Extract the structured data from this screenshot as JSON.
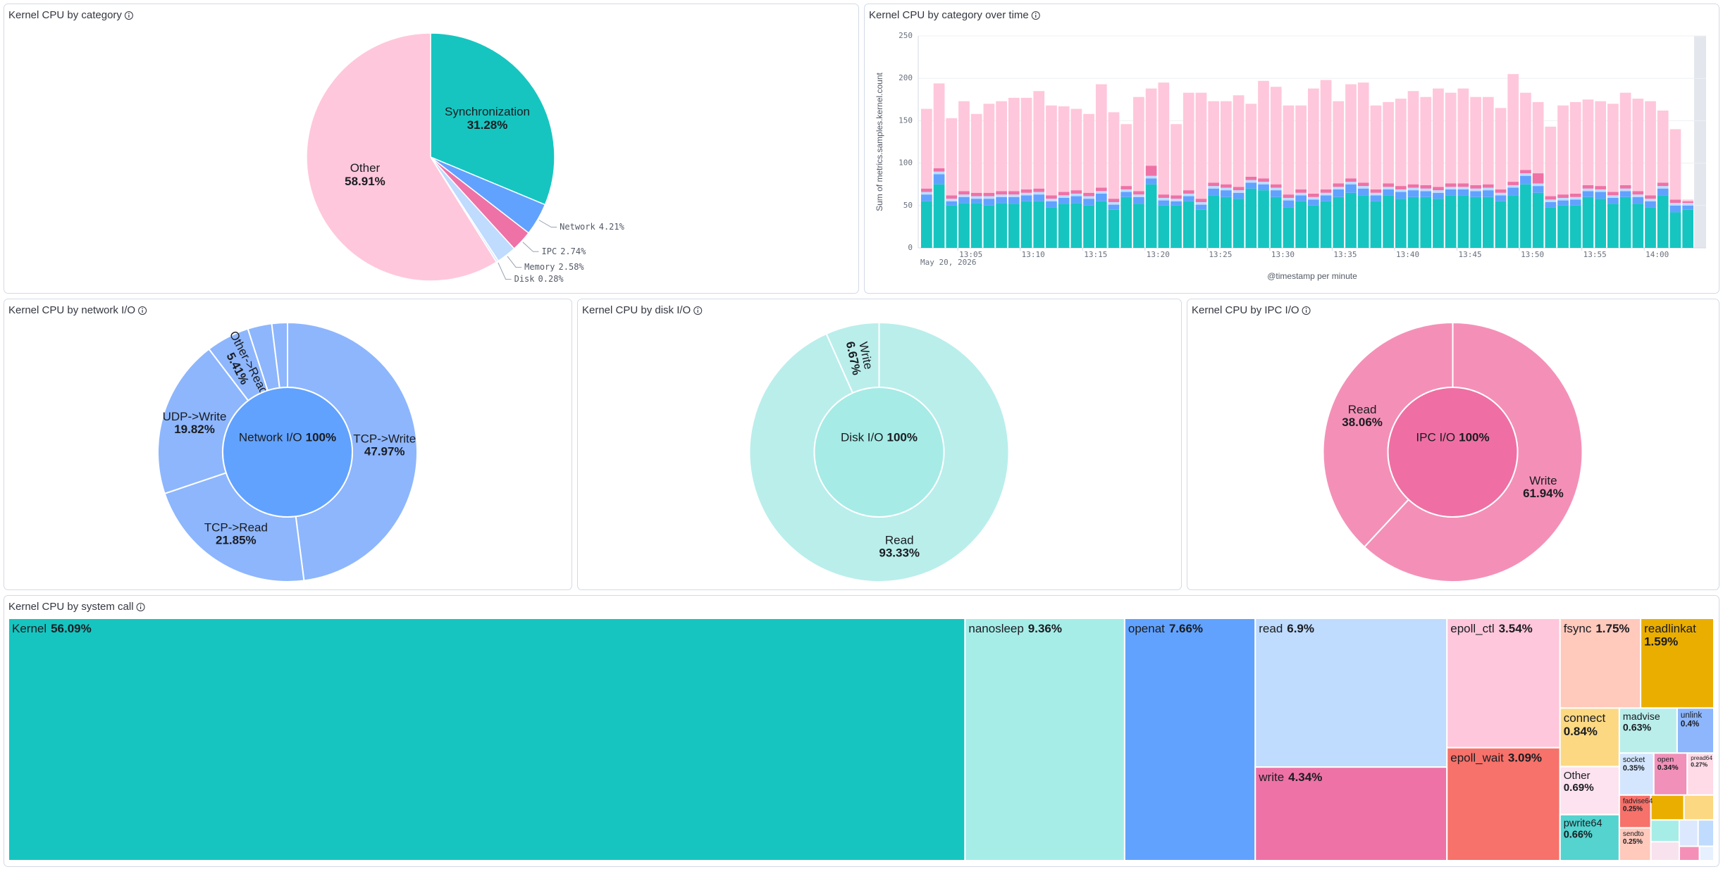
{
  "chart_data": [
    {
      "type": "pie",
      "title": "Kernel CPU by category",
      "categories": [
        "Synchronization",
        "Network",
        "IPC",
        "Memory",
        "Disk",
        "Other"
      ],
      "values": [
        31.28,
        4.21,
        2.74,
        2.58,
        0.28,
        58.91
      ],
      "value_labels": [
        "31.28%",
        "4.21%",
        "2.74%",
        "2.58%",
        "0.28%",
        "58.91%"
      ],
      "colors": [
        "#16c5c0",
        "#61a2ff",
        "#ee72a6",
        "#bfdbfe",
        "#d8e8fd",
        "#ffc7db"
      ]
    },
    {
      "type": "bar",
      "title": "Kernel CPU by category over time",
      "y_label": "Sum of metrics.samples.kernel.count",
      "x_label": "@timestamp per minute",
      "date_label": "May 20, 2026",
      "ylim": [
        0,
        250
      ],
      "yticks": [
        0,
        50,
        100,
        150,
        200,
        250
      ],
      "grid": true,
      "stacked": true,
      "categories": [
        null,
        null,
        null,
        "13:05",
        null,
        null,
        null,
        null,
        "13:10",
        null,
        null,
        null,
        null,
        "13:15",
        null,
        null,
        null,
        null,
        "13:20",
        null,
        null,
        null,
        null,
        "13:25",
        null,
        null,
        null,
        null,
        "13:30",
        null,
        null,
        null,
        null,
        "13:35",
        null,
        null,
        null,
        null,
        "13:40",
        null,
        null,
        null,
        null,
        "13:45",
        null,
        null,
        null,
        null,
        "13:50",
        null,
        null,
        null,
        null,
        "13:55",
        null,
        null,
        null,
        null,
        "14:00",
        null,
        null,
        null
      ],
      "series": [
        {
          "color": "#16c5c0",
          "values": [
            55,
            75,
            50,
            53,
            53,
            50,
            53,
            52,
            55,
            55,
            48,
            52,
            53,
            50,
            55,
            45,
            60,
            52,
            75,
            50,
            50,
            55,
            45,
            62,
            60,
            58,
            70,
            68,
            60,
            48,
            55,
            50,
            55,
            60,
            65,
            62,
            55,
            62,
            58,
            60,
            60,
            58,
            62,
            62,
            60,
            60,
            55,
            62,
            75,
            65,
            48,
            50,
            50,
            60,
            58,
            52,
            60,
            52,
            48,
            62,
            42,
            45
          ]
        },
        {
          "color": "#61a2ff",
          "values": [
            8,
            12,
            5,
            7,
            5,
            8,
            7,
            8,
            7,
            8,
            7,
            7,
            8,
            8,
            9,
            6,
            6,
            8,
            7,
            6,
            5,
            6,
            6,
            8,
            8,
            7,
            7,
            7,
            8,
            8,
            7,
            7,
            7,
            9,
            10,
            8,
            7,
            7,
            8,
            8,
            7,
            7,
            7,
            7,
            7,
            8,
            7,
            9,
            10,
            8,
            6,
            6,
            7,
            7,
            8,
            7,
            7,
            8,
            7,
            8,
            8,
            5
          ]
        },
        {
          "color": "#bfdbfe",
          "values": [
            3,
            3,
            3,
            3,
            3,
            3,
            3,
            3,
            3,
            3,
            3,
            3,
            3,
            3,
            3,
            3,
            3,
            3,
            3,
            3,
            3,
            3,
            3,
            3,
            3,
            3,
            3,
            3,
            3,
            3,
            3,
            3,
            3,
            3,
            3,
            3,
            3,
            3,
            3,
            3,
            3,
            3,
            3,
            3,
            3,
            3,
            3,
            3,
            3,
            3,
            3,
            3,
            3,
            3,
            3,
            3,
            3,
            3,
            3,
            3,
            3,
            3
          ]
        },
        {
          "color": "#ee72a6",
          "values": [
            4,
            4,
            4,
            4,
            4,
            4,
            4,
            4,
            4,
            4,
            4,
            4,
            4,
            4,
            4,
            4,
            4,
            4,
            12,
            4,
            4,
            4,
            4,
            4,
            4,
            4,
            4,
            4,
            4,
            4,
            4,
            4,
            4,
            4,
            4,
            4,
            4,
            4,
            4,
            4,
            4,
            4,
            4,
            4,
            4,
            4,
            4,
            4,
            4,
            12,
            4,
            4,
            4,
            4,
            4,
            4,
            4,
            4,
            4,
            4,
            4,
            2
          ]
        },
        {
          "color": "#ffc7db",
          "values": [
            94,
            100,
            91,
            106,
            93,
            105,
            106,
            110,
            108,
            115,
            106,
            101,
            96,
            93,
            122,
            102,
            73,
            111,
            91,
            132,
            84,
            115,
            125,
            96,
            98,
            108,
            86,
            115,
            115,
            105,
            99,
            124,
            129,
            97,
            111,
            118,
            99,
            96,
            103,
            110,
            104,
            116,
            107,
            112,
            104,
            103,
            96,
            127,
            91,
            84,
            82,
            105,
            108,
            101,
            100,
            104,
            109,
            109,
            111,
            85,
            83,
            2
          ]
        }
      ]
    },
    {
      "type": "sunburst",
      "title": "Kernel CPU by network I/O",
      "inner": {
        "label": "Network I/O",
        "value": 100,
        "value_label": "100%",
        "color": "#61a2ff"
      },
      "categories": [
        "TCP->Write",
        "TCP->Read",
        "UDP->Write",
        "Other->Read",
        null,
        null
      ],
      "values": [
        47.97,
        21.85,
        19.82,
        5.41,
        3.0,
        1.95
      ],
      "value_labels": [
        "47.97%",
        "21.85%",
        "19.82%",
        "5.41%",
        null,
        null
      ],
      "color": "#8db6fd"
    },
    {
      "type": "sunburst",
      "title": "Kernel CPU by disk I/O",
      "inner": {
        "label": "Disk I/O",
        "value": 100,
        "value_label": "100%",
        "color": "#a6ebe6"
      },
      "categories": [
        "Read",
        "Write"
      ],
      "values": [
        93.33,
        6.67
      ],
      "value_labels": [
        "93.33%",
        "6.67%"
      ],
      "color": "#b9eeeb"
    },
    {
      "type": "sunburst",
      "title": "Kernel CPU by IPC I/O",
      "inner": {
        "label": "IPC I/O",
        "value": 100,
        "value_label": "100%",
        "color": "#ef6fa4"
      },
      "categories": [
        "Write",
        "Read"
      ],
      "values": [
        61.94,
        38.06
      ],
      "value_labels": [
        "61.94%",
        "38.06%"
      ],
      "color": "#f490b7"
    },
    {
      "type": "treemap",
      "title": "Kernel CPU by system call",
      "categories": [
        "Kernel",
        "nanosleep",
        "openat",
        "read",
        "write",
        "epoll_ctl",
        "epoll_wait",
        "fsync",
        "readlinkat",
        "connect",
        "Other",
        "pwrite64",
        "madvise",
        "unlink",
        "socket",
        "open",
        "pread64",
        "fadvise64",
        "sendto",
        null,
        null,
        null,
        null,
        null,
        null,
        null,
        null
      ],
      "values": [
        56.09,
        9.36,
        7.66,
        6.9,
        4.34,
        3.54,
        3.09,
        1.75,
        1.59,
        0.84,
        0.69,
        0.66,
        0.63,
        0.4,
        0.35,
        0.34,
        0.27,
        0.25,
        0.25,
        0.2,
        0.18,
        0.15,
        0.13,
        0.12,
        0.1,
        0.07,
        0.05
      ],
      "value_labels": [
        "56.09%",
        "9.36%",
        "7.66%",
        "6.9%",
        "4.34%",
        "3.54%",
        "3.09%",
        "1.75%",
        "1.59%",
        "0.84%",
        "0.69%",
        "0.66%",
        "0.63%",
        "0.4%",
        "0.35%",
        "0.34%",
        "0.27%",
        "0.25%",
        "0.25%",
        null,
        null,
        null,
        null,
        null,
        null,
        null,
        null
      ],
      "colors": [
        "#16c5c0",
        "#a6ede8",
        "#61a2ff",
        "#bfdbfe",
        "#ee72a6",
        "#ffc7db",
        "#f6726a",
        "#ffc9bc",
        "#eaae01",
        "#fcd883",
        "#fde2ef",
        "#54d3cf",
        "#b9eeeb",
        "#8db6fd",
        "#d4e6fd",
        "#f190b8",
        "#fedbe6",
        "#f6726a",
        "#ffc9bc",
        "#eaae01",
        "#fcd883",
        "#a6ede8",
        "#f8e2ee",
        "#dbe8fe",
        "#bfdbfe",
        "#f490b7",
        "#e6f0fe"
      ]
    }
  ]
}
